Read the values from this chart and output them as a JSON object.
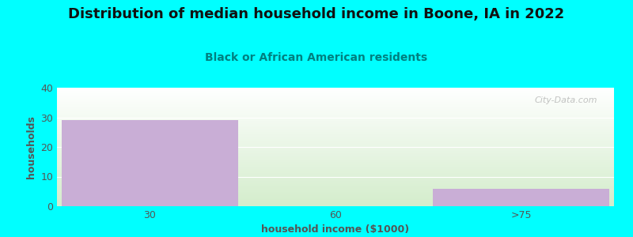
{
  "title": "Distribution of median household income in Boone, IA in 2022",
  "subtitle": "Black or African American residents",
  "xlabel": "household income ($1000)",
  "ylabel": "households",
  "categories": [
    "30",
    "60",
    ">75"
  ],
  "values": [
    29,
    0,
    6
  ],
  "bar_color": "#c9aed6",
  "background_color": "#00ffff",
  "plot_bg_top": "#d6ecd2",
  "plot_bg_bottom": "#ffffff",
  "ylim": [
    0,
    40
  ],
  "yticks": [
    0,
    10,
    20,
    30,
    40
  ],
  "title_fontsize": 13,
  "subtitle_fontsize": 10,
  "axis_label_fontsize": 9,
  "tick_fontsize": 9,
  "title_color": "#111111",
  "subtitle_color": "#008080",
  "axis_label_color": "#555555",
  "tick_color": "#555555",
  "watermark": "City-Data.com"
}
